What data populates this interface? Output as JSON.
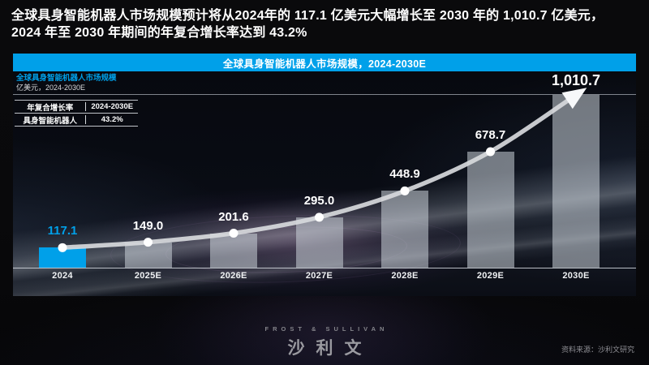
{
  "title": {
    "line1": "全球具身智能机器人市场规模预计将从2024年的 117.1 亿美元大幅增长至 2030 年的 1,010.7 亿美元，",
    "line2": "2024 年至 2030 年期间的年复合增长率达到 43.2%"
  },
  "chart_header": "全球具身智能机器人市场规模，2024-2030E",
  "chart_subtitle": "全球具身智能机器人市场规模",
  "chart_unit": "亿美元，2024-2030E",
  "cagr_table": {
    "col1_header": "年复合增长率",
    "col2_header": "2024-2030E",
    "row1_col1": "具身智能机器人",
    "row1_col2": "43.2%"
  },
  "chart_data": {
    "type": "bar",
    "title": "全球具身智能机器人市场规模，2024-2030E",
    "ylabel": "亿美元",
    "categories": [
      "2024",
      "2025E",
      "2026E",
      "2027E",
      "2028E",
      "2029E",
      "2030E"
    ],
    "values": [
      117.1,
      149.0,
      201.6,
      295.0,
      448.9,
      678.7,
      1010.7
    ],
    "value_labels": [
      "117.1",
      "149.0",
      "201.6",
      "295.0",
      "448.9",
      "678.7",
      "1,010.7"
    ],
    "ylim": [
      0,
      1010.7
    ],
    "grid": false,
    "legend": "none",
    "highlight_index": 0,
    "colors": {
      "accent": "#00A0E9",
      "bar": "rgba(203,209,216,0.55)",
      "line": "#D7D9DC",
      "marker": "#FFFFFF",
      "arrow": "#F7F8FA"
    },
    "trend": "line-with-arrow"
  },
  "footer": {
    "logo_line1": "FROST & SULLIVAN",
    "logo_line2": "沙利文",
    "source": "资料来源：沙利文研究"
  }
}
